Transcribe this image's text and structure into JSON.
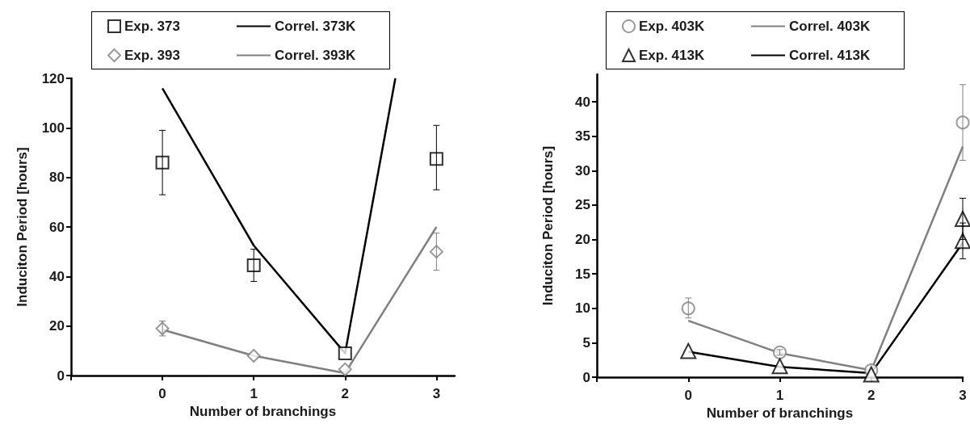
{
  "chart_data": [
    {
      "type": "scatter",
      "xlabel": "Number of branchings",
      "ylabel": "Induciton Period [hours]",
      "x": [
        0,
        1,
        2,
        3
      ],
      "xlim": [
        -1,
        3.2
      ],
      "xticks": [
        {
          "value": -1,
          "label": null
        },
        0,
        1,
        2,
        3
      ],
      "ylim": [
        0,
        120
      ],
      "yticks": [
        0,
        20,
        40,
        60,
        80,
        100,
        120
      ],
      "grid": false,
      "legend": "top",
      "series": [
        {
          "name": "Exp. 373",
          "marker": "square",
          "color": "#000000",
          "values": [
            86,
            44.5,
            9,
            87.5
          ],
          "errors": [
            [
              73,
              99
            ],
            [
              38,
              51
            ],
            null,
            [
              75,
              101
            ]
          ]
        },
        {
          "name": "Correl. 373K",
          "type": "line",
          "marker": "none",
          "line_style": "solid",
          "color": "#000000",
          "x": [
            0,
            1,
            2,
            2.55
          ],
          "values": [
            116,
            52.5,
            9,
            120
          ]
        },
        {
          "name": "Exp. 393",
          "marker": "diamond",
          "color": "#808080",
          "values": [
            19,
            8,
            2.5,
            50
          ],
          "errors": [
            [
              16,
              22
            ],
            null,
            null,
            [
              42.5,
              57.5
            ]
          ]
        },
        {
          "name": "Correl. 393K",
          "type": "line",
          "marker": "none",
          "line_style": "solid",
          "color": "#808080",
          "values": [
            18.5,
            8,
            1,
            60
          ]
        }
      ]
    },
    {
      "type": "scatter",
      "xlabel": "Number of branchings",
      "ylabel": "Induciton Period [hours]",
      "x": [
        0,
        1,
        2,
        3
      ],
      "xlim": [
        -1,
        3
      ],
      "xticks": [
        {
          "value": -1,
          "label": null
        },
        0,
        1,
        2,
        3
      ],
      "ylim": [
        0,
        44
      ],
      "yticks": [
        0,
        5,
        10,
        15,
        20,
        25,
        30,
        35,
        40
      ],
      "grid": false,
      "legend": "top",
      "series": [
        {
          "name": "Exp. 403K",
          "marker": "circle",
          "color": "#808080",
          "values": [
            10,
            3.6,
            1,
            37
          ],
          "errors": [
            [
              8.6,
              11.5
            ],
            [
              3.2,
              4
            ],
            null,
            [
              31.5,
              42.5
            ]
          ]
        },
        {
          "name": "Correl. 403K",
          "type": "line",
          "marker": "none",
          "line_style": "solid",
          "color": "#808080",
          "values": [
            8.2,
            3.5,
            1,
            33.5
          ]
        },
        {
          "name": "Exp. 413K",
          "marker": "triangle",
          "color": "#000000",
          "x": [
            0,
            1,
            2,
            3,
            3
          ],
          "values": [
            3.8,
            1.6,
            0.4,
            23,
            19.8
          ],
          "errors": [
            null,
            null,
            null,
            [
              20,
              26
            ],
            [
              17.2,
              22.4
            ]
          ]
        },
        {
          "name": "Correl. 413K",
          "type": "line",
          "marker": "none",
          "line_style": "solid",
          "color": "#000000",
          "values": [
            3.7,
            1.5,
            0.6,
            19.5
          ]
        }
      ]
    }
  ]
}
